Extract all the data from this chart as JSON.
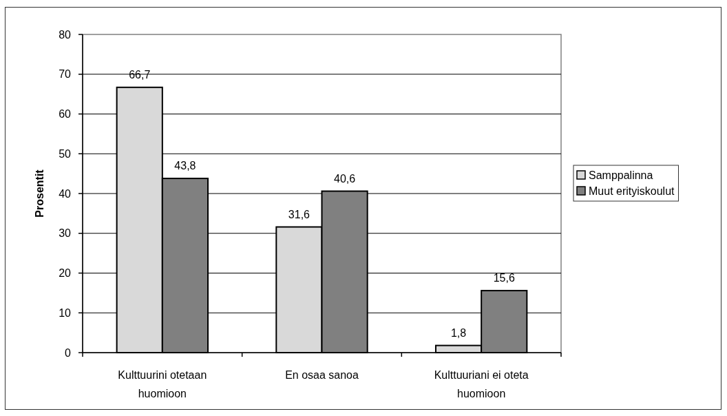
{
  "chart_data": {
    "type": "bar",
    "categories": [
      "Kulttuurini otetaan huomioon",
      "En osaa sanoa",
      "Kulttuuriani ei oteta huomioon"
    ],
    "series": [
      {
        "name": "Samppalinna",
        "color": "#d9d9d9",
        "values": [
          66.7,
          31.6,
          1.8
        ],
        "value_labels": [
          "66,7",
          "31,6",
          "1,8"
        ]
      },
      {
        "name": "Muut erityiskoulut",
        "color": "#808080",
        "values": [
          43.8,
          40.6,
          15.6
        ],
        "value_labels": [
          "43,8",
          "40,6",
          "15,6"
        ]
      }
    ],
    "ylabel": "Prosentit",
    "ylim": [
      0,
      80
    ],
    "yticks": [
      0,
      10,
      20,
      30,
      40,
      50,
      60,
      70,
      80
    ],
    "grid": "y",
    "legend": "right"
  }
}
